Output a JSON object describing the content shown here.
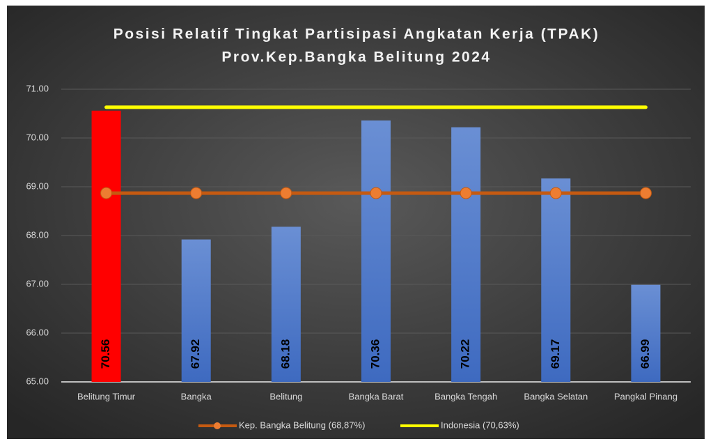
{
  "chart_data": {
    "type": "bar",
    "title": "Posisi Relatif Tingkat Partisipasi Angkatan Kerja (TPAK)",
    "subtitle": "Prov.Kep.Bangka Belitung 2024",
    "categories": [
      "Belitung Timur",
      "Bangka",
      "Belitung",
      "Bangka Barat",
      "Bangka Tengah",
      "Bangka Selatan",
      "Pangkal Pinang"
    ],
    "values": [
      70.56,
      67.92,
      68.18,
      70.36,
      70.22,
      69.17,
      66.99
    ],
    "colors": [
      "#ff0000",
      "#4472c4",
      "#4472c4",
      "#4472c4",
      "#4472c4",
      "#4472c4",
      "#4472c4"
    ],
    "lines": [
      {
        "name": "Kep. Bangka Belitung (68,87%)",
        "color": "#c55a11",
        "marker_color": "#ed7d31",
        "markers": true,
        "values": [
          68.87,
          68.87,
          68.87,
          68.87,
          68.87,
          68.87,
          68.87
        ]
      },
      {
        "name": "Indonesia (70,63%)",
        "color": "#ffff00",
        "markers": false,
        "values": [
          70.63,
          70.63,
          70.63,
          70.63,
          70.63,
          70.63,
          70.63
        ]
      }
    ],
    "ylim": [
      65,
      71
    ],
    "yticks": [
      {
        "value": 65,
        "label": "65.00"
      },
      {
        "value": 66,
        "label": "66.00"
      },
      {
        "value": 67,
        "label": "67.00"
      },
      {
        "value": 68,
        "label": "68.00"
      },
      {
        "value": 69,
        "label": "69.00"
      },
      {
        "value": 70,
        "label": "70.00"
      },
      {
        "value": 71,
        "label": "71.00"
      }
    ],
    "grid": true,
    "legend": "bottom"
  }
}
